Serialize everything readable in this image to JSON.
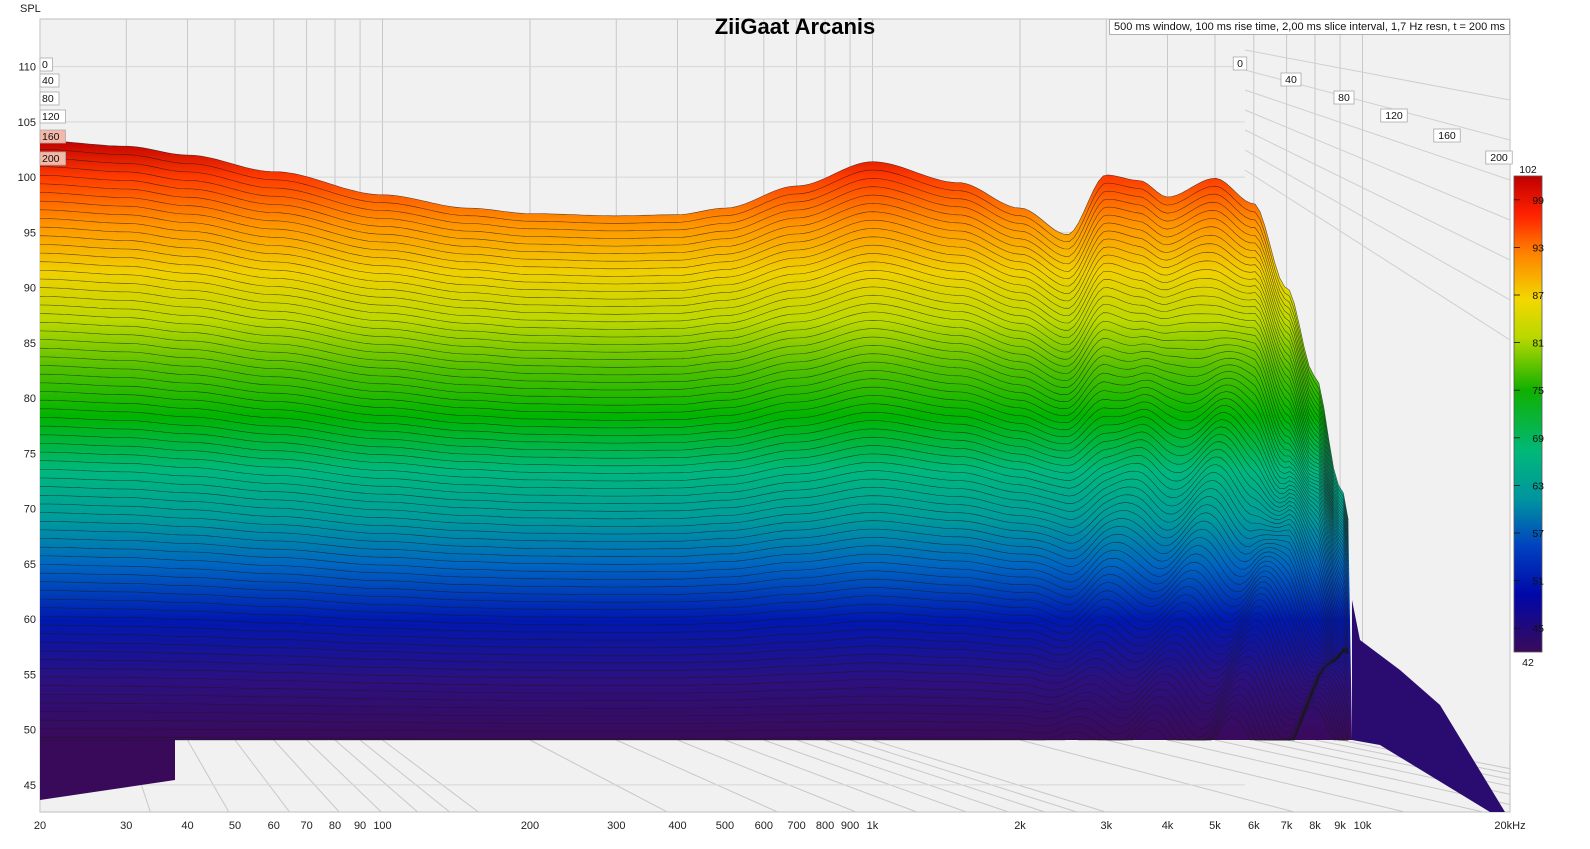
{
  "chart_data": {
    "type": "area",
    "subtype": "waterfall",
    "title": "ZiiGaat Arcanis",
    "info": "500 ms window, 100 ms rise time, 2,00 ms slice interval, 1,7 Hz resn, t = 200 ms",
    "ylabel": "SPL",
    "xlabel": "",
    "x_scale": "log",
    "xlim": [
      20,
      20000
    ],
    "ylim": [
      42,
      112
    ],
    "y_ticks": [
      45,
      50,
      55,
      60,
      65,
      70,
      75,
      80,
      85,
      90,
      95,
      100,
      105,
      110
    ],
    "x_ticks": [
      {
        "value": 20,
        "label": "20"
      },
      {
        "value": 30,
        "label": "30"
      },
      {
        "value": 40,
        "label": "40"
      },
      {
        "value": 50,
        "label": "50"
      },
      {
        "value": 60,
        "label": "60"
      },
      {
        "value": 70,
        "label": "70"
      },
      {
        "value": 80,
        "label": "80"
      },
      {
        "value": 90,
        "label": "90"
      },
      {
        "value": 100,
        "label": "100"
      },
      {
        "value": 200,
        "label": "200"
      },
      {
        "value": 300,
        "label": "300"
      },
      {
        "value": 400,
        "label": "400"
      },
      {
        "value": 500,
        "label": "500"
      },
      {
        "value": 600,
        "label": "600"
      },
      {
        "value": 700,
        "label": "700"
      },
      {
        "value": 800,
        "label": "800"
      },
      {
        "value": 900,
        "label": "900"
      },
      {
        "value": 1000,
        "label": "1k"
      },
      {
        "value": 2000,
        "label": "2k"
      },
      {
        "value": 3000,
        "label": "3k"
      },
      {
        "value": 4000,
        "label": "4k"
      },
      {
        "value": 5000,
        "label": "5k"
      },
      {
        "value": 6000,
        "label": "6k"
      },
      {
        "value": 7000,
        "label": "7k"
      },
      {
        "value": 8000,
        "label": "8k"
      },
      {
        "value": 9000,
        "label": "9k"
      },
      {
        "value": 10000,
        "label": "10k"
      },
      {
        "value": 20000,
        "label": "20kHz"
      }
    ],
    "time_axis_labels": [
      "0",
      "40",
      "80",
      "120",
      "160",
      "200"
    ],
    "time_axis_labels_left": [
      "0",
      "40",
      "80",
      "120",
      "160",
      "200"
    ],
    "colorbar": {
      "max_label": "102",
      "min_label": "42",
      "ticks": [
        99,
        93,
        87,
        81,
        75,
        69,
        63,
        57,
        51,
        45
      ],
      "colors": [
        "#8b0000",
        "#ff2000",
        "#ff8000",
        "#ffd000",
        "#d8e000",
        "#70c800",
        "#00b400",
        "#00b878",
        "#00a0a0",
        "#0060c0",
        "#0010b0",
        "#30107a",
        "#3a0a5a"
      ]
    },
    "front_slice_t0": {
      "freq_hz": [
        20,
        30,
        40,
        60,
        100,
        150,
        200,
        300,
        400,
        500,
        700,
        1000,
        1500,
        2000,
        2500,
        3000,
        3500,
        4000,
        5000,
        6000,
        7000,
        8000,
        9000,
        10000,
        12000,
        20000
      ],
      "spl_db": [
        103.3,
        102.8,
        102.0,
        100.5,
        98.4,
        97.2,
        96.7,
        96.5,
        96.6,
        97.2,
        99.2,
        101.4,
        99.5,
        97.2,
        94.8,
        100.2,
        99.7,
        98.2,
        99.9,
        97.6,
        90.0,
        82.0,
        72.0,
        62.0,
        47.0,
        42.0
      ]
    },
    "decay": {
      "slice_interval_ms": 2.0,
      "end_time_ms": 200,
      "floor_db": 48.5
    }
  }
}
